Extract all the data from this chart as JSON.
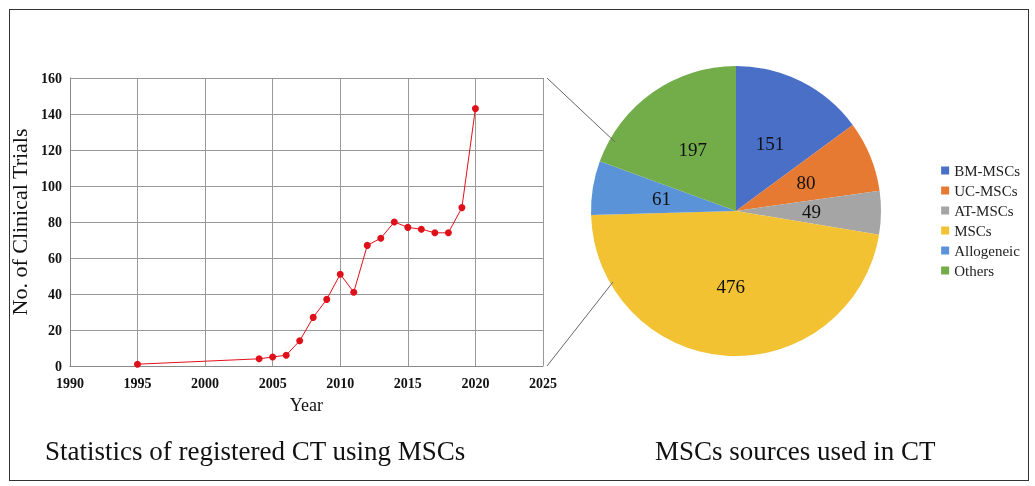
{
  "chart_data": [
    {
      "type": "line",
      "title": "Statistics of registered CT using MSCs",
      "xlabel": "Year",
      "ylabel": "No. of Clinical Trials",
      "x": [
        1995,
        2004,
        2005,
        2006,
        2007,
        2008,
        2009,
        2010,
        2011,
        2012,
        2013,
        2014,
        2015,
        2016,
        2017,
        2018,
        2019,
        2020
      ],
      "series": [
        {
          "color": "#e0101a",
          "values": [
            1,
            4,
            5,
            6,
            14,
            27,
            37,
            51,
            41,
            67,
            71,
            80,
            77,
            76,
            74,
            74,
            88,
            143
          ]
        }
      ],
      "xlim": [
        1990,
        2025
      ],
      "xticks": [
        1990,
        1995,
        2000,
        2005,
        2010,
        2015,
        2020,
        2025
      ],
      "ylim": [
        0,
        160
      ],
      "yticks": [
        0,
        20,
        40,
        60,
        80,
        100,
        120,
        140,
        160
      ],
      "grid": true,
      "marker": "circle",
      "line_style": "solid"
    },
    {
      "type": "pie",
      "title": "MSCs sources used in CT",
      "categories": [
        "BM-MSCs",
        "UC-MSCs",
        "AT-MSCs",
        "MSCs",
        "Allogeneic",
        "Others"
      ],
      "values": [
        151,
        80,
        49,
        476,
        61,
        197
      ],
      "colors": [
        "#4a6fc7",
        "#e77a32",
        "#a5a5a5",
        "#f2c232",
        "#5b93d8",
        "#72ad4a"
      ],
      "data_labels": true,
      "legend": "right"
    }
  ]
}
